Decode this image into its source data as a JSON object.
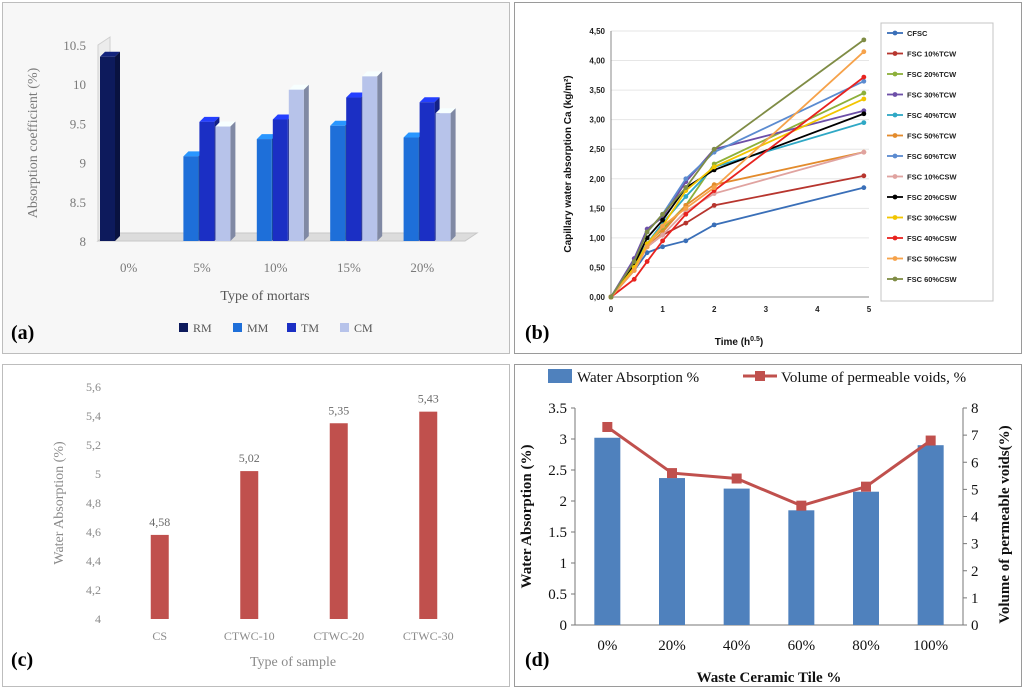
{
  "chart_data": [
    {
      "panel_label": "(a)",
      "type": "bar",
      "ylabel": "Absorption coefficient (%)",
      "xlabel": "Type of mortars",
      "ylim": [
        8,
        10.5
      ],
      "yticks": [
        "8",
        "8.5",
        "9",
        "9.5",
        "10",
        "10.5"
      ],
      "categories": [
        "0%",
        "5%",
        "10%",
        "15%",
        "20%"
      ],
      "legend_position": "bottom",
      "series": [
        {
          "name": "RM",
          "color": "#0d1a5c",
          "values": [
            10.35,
            null,
            null,
            null,
            null
          ]
        },
        {
          "name": "MM",
          "color": "#1e6fd9",
          "values": [
            null,
            9.08,
            9.3,
            9.47,
            9.32
          ]
        },
        {
          "name": "TM",
          "color": "#1b2fc4",
          "values": [
            null,
            9.52,
            9.55,
            9.83,
            9.77
          ]
        },
        {
          "name": "CM",
          "color": "#b7c3ea",
          "values": [
            null,
            9.46,
            9.93,
            10.1,
            9.63
          ]
        }
      ]
    },
    {
      "panel_label": "(b)",
      "type": "line",
      "ylabel": "Capillary water absorption  Ca (kg/m²)",
      "xlabel_main": "Time (h",
      "xlabel_sup": "0.5",
      "xlabel_end": ")",
      "ylim": [
        0,
        4.5
      ],
      "xlim": [
        0,
        5
      ],
      "yticks": [
        "0,00",
        "0,50",
        "1,00",
        "1,50",
        "2,00",
        "2,50",
        "3,00",
        "3,50",
        "4,00",
        "4,50"
      ],
      "xticks": [
        "0",
        "1",
        "2",
        "3",
        "4",
        "5"
      ],
      "x": [
        0,
        0.45,
        0.7,
        1,
        1.45,
        2,
        4.9
      ],
      "legend_position": "right",
      "series": [
        {
          "name": "CFSC",
          "color": "#3a6fb8",
          "values": [
            0,
            0.45,
            0.75,
            0.85,
            0.95,
            1.22,
            1.85
          ]
        },
        {
          "name": "FSC 10%TCW",
          "color": "#b7352e",
          "values": [
            0,
            0.5,
            0.85,
            1.05,
            1.25,
            1.55,
            2.05
          ]
        },
        {
          "name": "FSC 20%TCW",
          "color": "#8db03a",
          "values": [
            0,
            0.55,
            0.9,
            1.15,
            1.55,
            2.25,
            3.45
          ]
        },
        {
          "name": "FSC 30%TCW",
          "color": "#6d4fa8",
          "values": [
            0,
            0.65,
            1.15,
            1.35,
            1.95,
            2.5,
            3.15
          ]
        },
        {
          "name": "FSC 40%TCW",
          "color": "#2fa8c5",
          "values": [
            0,
            0.55,
            0.9,
            1.25,
            1.7,
            2.2,
            2.95
          ]
        },
        {
          "name": "FSC 50%TCW",
          "color": "#e38b2c",
          "values": [
            0,
            0.5,
            0.85,
            1.1,
            1.55,
            1.9,
            2.45
          ]
        },
        {
          "name": "FSC 60%TCW",
          "color": "#5b8bd0",
          "values": [
            0,
            0.6,
            1.1,
            1.4,
            2.0,
            2.45,
            3.65
          ]
        },
        {
          "name": "FSC 10%CSW",
          "color": "#e0a3a0",
          "values": [
            0,
            0.45,
            0.85,
            1.05,
            1.45,
            1.75,
            2.45
          ]
        },
        {
          "name": "FSC 20%CSW",
          "color": "#000000",
          "values": [
            0,
            0.55,
            1.0,
            1.3,
            1.85,
            2.15,
            3.1
          ]
        },
        {
          "name": "FSC 30%CSW",
          "color": "#f2c500",
          "values": [
            0,
            0.5,
            0.9,
            1.2,
            1.8,
            2.2,
            3.35
          ]
        },
        {
          "name": "FSC 40%CSW",
          "color": "#e8231f",
          "values": [
            0,
            0.3,
            0.6,
            0.95,
            1.4,
            1.8,
            3.72
          ]
        },
        {
          "name": "FSC 50%CSW",
          "color": "#f6a24a",
          "values": [
            0,
            0.45,
            0.85,
            1.2,
            1.5,
            1.85,
            4.15
          ]
        },
        {
          "name": "FSC 60%CSW",
          "color": "#7f8c45",
          "values": [
            0,
            0.6,
            1.1,
            1.4,
            1.85,
            2.5,
            4.35
          ]
        }
      ]
    },
    {
      "panel_label": "(c)",
      "type": "bar",
      "ylabel": "Water Absorption (%)",
      "xlabel": "Type of sample",
      "ylim": [
        4,
        5.6
      ],
      "yticks": [
        "4",
        "4,2",
        "4,4",
        "4,6",
        "4,8",
        "5",
        "5,2",
        "5,4",
        "5,6"
      ],
      "categories": [
        "CS",
        "CTWC-10",
        "CTWC-20",
        "CTWC-30"
      ],
      "values": [
        4.58,
        5.02,
        5.35,
        5.43
      ],
      "data_labels": [
        "4,58",
        "5,02",
        "5,35",
        "5,43"
      ],
      "bar_color": "#c0504d"
    },
    {
      "panel_label": "(d)",
      "type": "bar",
      "ylabel_left": "Water Absorption (%)",
      "ylabel_right": "Volume of permeable voids(%)",
      "xlabel": "Waste Ceramic Tile %",
      "ylim_left": [
        0,
        3.5
      ],
      "ylim_right": [
        0,
        8
      ],
      "yticks_left": [
        "0",
        "0.5",
        "1",
        "1.5",
        "2",
        "2.5",
        "3",
        "3.5"
      ],
      "yticks_right": [
        "0",
        "1",
        "2",
        "3",
        "4",
        "5",
        "6",
        "7",
        "8"
      ],
      "categories": [
        "0%",
        "20%",
        "40%",
        "60%",
        "80%",
        "100%"
      ],
      "legend_position": "top",
      "series": [
        {
          "name": "Water Absorption %",
          "kind": "bar",
          "axis": "left",
          "color": "#4f81bd",
          "values": [
            3.02,
            2.37,
            2.2,
            1.85,
            2.15,
            2.9
          ]
        },
        {
          "name": "Volume of permeable voids, %",
          "kind": "line",
          "axis": "right",
          "color": "#c0504d",
          "values": [
            7.3,
            5.6,
            5.4,
            4.4,
            5.1,
            6.8
          ]
        }
      ]
    }
  ]
}
